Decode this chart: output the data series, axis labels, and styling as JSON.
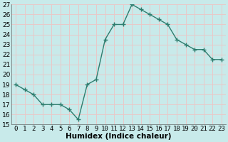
{
  "x": [
    0,
    1,
    2,
    3,
    4,
    5,
    6,
    7,
    8,
    9,
    10,
    11,
    12,
    13,
    14,
    15,
    16,
    17,
    18,
    19,
    20,
    21,
    22,
    23
  ],
  "y": [
    19,
    18.5,
    18,
    17,
    17,
    17,
    16.5,
    15.5,
    19,
    19.5,
    23.5,
    25,
    25,
    27,
    26.5,
    26,
    25.5,
    25,
    23.5,
    23,
    22.5,
    22.5,
    21.5,
    21.5
  ],
  "line_color": "#2e7d6e",
  "marker_color": "#2e7d6e",
  "bg_color": "#c8eaea",
  "grid_color": "#e8c8c8",
  "xlabel": "Humidex (Indice chaleur)",
  "ylim": [
    15,
    27
  ],
  "xlim": [
    -0.5,
    23.5
  ],
  "yticks": [
    15,
    16,
    17,
    18,
    19,
    20,
    21,
    22,
    23,
    24,
    25,
    26,
    27
  ],
  "xticks": [
    0,
    1,
    2,
    3,
    4,
    5,
    6,
    7,
    8,
    9,
    10,
    11,
    12,
    13,
    14,
    15,
    16,
    17,
    18,
    19,
    20,
    21,
    22,
    23
  ],
  "tick_fontsize": 6.5,
  "label_fontsize": 7.5,
  "marker_size": 2.5,
  "linewidth": 1.0
}
